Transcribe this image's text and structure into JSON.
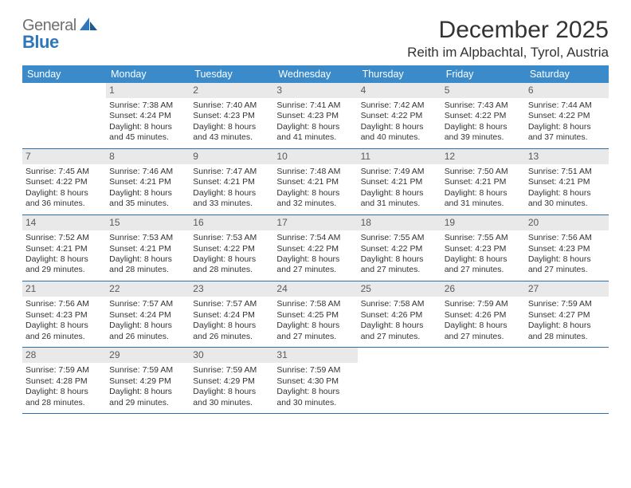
{
  "logo": {
    "line1a": "General",
    "line1b": "◤",
    "line2": "Blue"
  },
  "header": {
    "month": "December 2025",
    "location": "Reith im Alpbachtal, Tyrol, Austria"
  },
  "day_headers": [
    "Sunday",
    "Monday",
    "Tuesday",
    "Wednesday",
    "Thursday",
    "Friday",
    "Saturday"
  ],
  "style": {
    "header_bg": "#3b8bca",
    "header_text": "#ffffff",
    "row_border": "#2f6fa8",
    "daynum_bg": "#e9e9e9",
    "daynum_text": "#5a5a5a",
    "body_text": "#333333",
    "logo_grey": "#707070",
    "logo_blue": "#2f77bb",
    "page_bg": "#ffffff",
    "body_font_size_pt": 8,
    "header_font_size_pt": 9.5,
    "title_font_size_pt": 22,
    "location_font_size_pt": 13
  },
  "weeks": [
    [
      null,
      {
        "n": "1",
        "sr": "Sunrise: 7:38 AM",
        "ss": "Sunset: 4:24 PM",
        "d1": "Daylight: 8 hours",
        "d2": "and 45 minutes."
      },
      {
        "n": "2",
        "sr": "Sunrise: 7:40 AM",
        "ss": "Sunset: 4:23 PM",
        "d1": "Daylight: 8 hours",
        "d2": "and 43 minutes."
      },
      {
        "n": "3",
        "sr": "Sunrise: 7:41 AM",
        "ss": "Sunset: 4:23 PM",
        "d1": "Daylight: 8 hours",
        "d2": "and 41 minutes."
      },
      {
        "n": "4",
        "sr": "Sunrise: 7:42 AM",
        "ss": "Sunset: 4:22 PM",
        "d1": "Daylight: 8 hours",
        "d2": "and 40 minutes."
      },
      {
        "n": "5",
        "sr": "Sunrise: 7:43 AM",
        "ss": "Sunset: 4:22 PM",
        "d1": "Daylight: 8 hours",
        "d2": "and 39 minutes."
      },
      {
        "n": "6",
        "sr": "Sunrise: 7:44 AM",
        "ss": "Sunset: 4:22 PM",
        "d1": "Daylight: 8 hours",
        "d2": "and 37 minutes."
      }
    ],
    [
      {
        "n": "7",
        "sr": "Sunrise: 7:45 AM",
        "ss": "Sunset: 4:22 PM",
        "d1": "Daylight: 8 hours",
        "d2": "and 36 minutes."
      },
      {
        "n": "8",
        "sr": "Sunrise: 7:46 AM",
        "ss": "Sunset: 4:21 PM",
        "d1": "Daylight: 8 hours",
        "d2": "and 35 minutes."
      },
      {
        "n": "9",
        "sr": "Sunrise: 7:47 AM",
        "ss": "Sunset: 4:21 PM",
        "d1": "Daylight: 8 hours",
        "d2": "and 33 minutes."
      },
      {
        "n": "10",
        "sr": "Sunrise: 7:48 AM",
        "ss": "Sunset: 4:21 PM",
        "d1": "Daylight: 8 hours",
        "d2": "and 32 minutes."
      },
      {
        "n": "11",
        "sr": "Sunrise: 7:49 AM",
        "ss": "Sunset: 4:21 PM",
        "d1": "Daylight: 8 hours",
        "d2": "and 31 minutes."
      },
      {
        "n": "12",
        "sr": "Sunrise: 7:50 AM",
        "ss": "Sunset: 4:21 PM",
        "d1": "Daylight: 8 hours",
        "d2": "and 31 minutes."
      },
      {
        "n": "13",
        "sr": "Sunrise: 7:51 AM",
        "ss": "Sunset: 4:21 PM",
        "d1": "Daylight: 8 hours",
        "d2": "and 30 minutes."
      }
    ],
    [
      {
        "n": "14",
        "sr": "Sunrise: 7:52 AM",
        "ss": "Sunset: 4:21 PM",
        "d1": "Daylight: 8 hours",
        "d2": "and 29 minutes."
      },
      {
        "n": "15",
        "sr": "Sunrise: 7:53 AM",
        "ss": "Sunset: 4:21 PM",
        "d1": "Daylight: 8 hours",
        "d2": "and 28 minutes."
      },
      {
        "n": "16",
        "sr": "Sunrise: 7:53 AM",
        "ss": "Sunset: 4:22 PM",
        "d1": "Daylight: 8 hours",
        "d2": "and 28 minutes."
      },
      {
        "n": "17",
        "sr": "Sunrise: 7:54 AM",
        "ss": "Sunset: 4:22 PM",
        "d1": "Daylight: 8 hours",
        "d2": "and 27 minutes."
      },
      {
        "n": "18",
        "sr": "Sunrise: 7:55 AM",
        "ss": "Sunset: 4:22 PM",
        "d1": "Daylight: 8 hours",
        "d2": "and 27 minutes."
      },
      {
        "n": "19",
        "sr": "Sunrise: 7:55 AM",
        "ss": "Sunset: 4:23 PM",
        "d1": "Daylight: 8 hours",
        "d2": "and 27 minutes."
      },
      {
        "n": "20",
        "sr": "Sunrise: 7:56 AM",
        "ss": "Sunset: 4:23 PM",
        "d1": "Daylight: 8 hours",
        "d2": "and 27 minutes."
      }
    ],
    [
      {
        "n": "21",
        "sr": "Sunrise: 7:56 AM",
        "ss": "Sunset: 4:23 PM",
        "d1": "Daylight: 8 hours",
        "d2": "and 26 minutes."
      },
      {
        "n": "22",
        "sr": "Sunrise: 7:57 AM",
        "ss": "Sunset: 4:24 PM",
        "d1": "Daylight: 8 hours",
        "d2": "and 26 minutes."
      },
      {
        "n": "23",
        "sr": "Sunrise: 7:57 AM",
        "ss": "Sunset: 4:24 PM",
        "d1": "Daylight: 8 hours",
        "d2": "and 26 minutes."
      },
      {
        "n": "24",
        "sr": "Sunrise: 7:58 AM",
        "ss": "Sunset: 4:25 PM",
        "d1": "Daylight: 8 hours",
        "d2": "and 27 minutes."
      },
      {
        "n": "25",
        "sr": "Sunrise: 7:58 AM",
        "ss": "Sunset: 4:26 PM",
        "d1": "Daylight: 8 hours",
        "d2": "and 27 minutes."
      },
      {
        "n": "26",
        "sr": "Sunrise: 7:59 AM",
        "ss": "Sunset: 4:26 PM",
        "d1": "Daylight: 8 hours",
        "d2": "and 27 minutes."
      },
      {
        "n": "27",
        "sr": "Sunrise: 7:59 AM",
        "ss": "Sunset: 4:27 PM",
        "d1": "Daylight: 8 hours",
        "d2": "and 28 minutes."
      }
    ],
    [
      {
        "n": "28",
        "sr": "Sunrise: 7:59 AM",
        "ss": "Sunset: 4:28 PM",
        "d1": "Daylight: 8 hours",
        "d2": "and 28 minutes."
      },
      {
        "n": "29",
        "sr": "Sunrise: 7:59 AM",
        "ss": "Sunset: 4:29 PM",
        "d1": "Daylight: 8 hours",
        "d2": "and 29 minutes."
      },
      {
        "n": "30",
        "sr": "Sunrise: 7:59 AM",
        "ss": "Sunset: 4:29 PM",
        "d1": "Daylight: 8 hours",
        "d2": "and 30 minutes."
      },
      {
        "n": "31",
        "sr": "Sunrise: 7:59 AM",
        "ss": "Sunset: 4:30 PM",
        "d1": "Daylight: 8 hours",
        "d2": "and 30 minutes."
      },
      null,
      null,
      null
    ]
  ]
}
